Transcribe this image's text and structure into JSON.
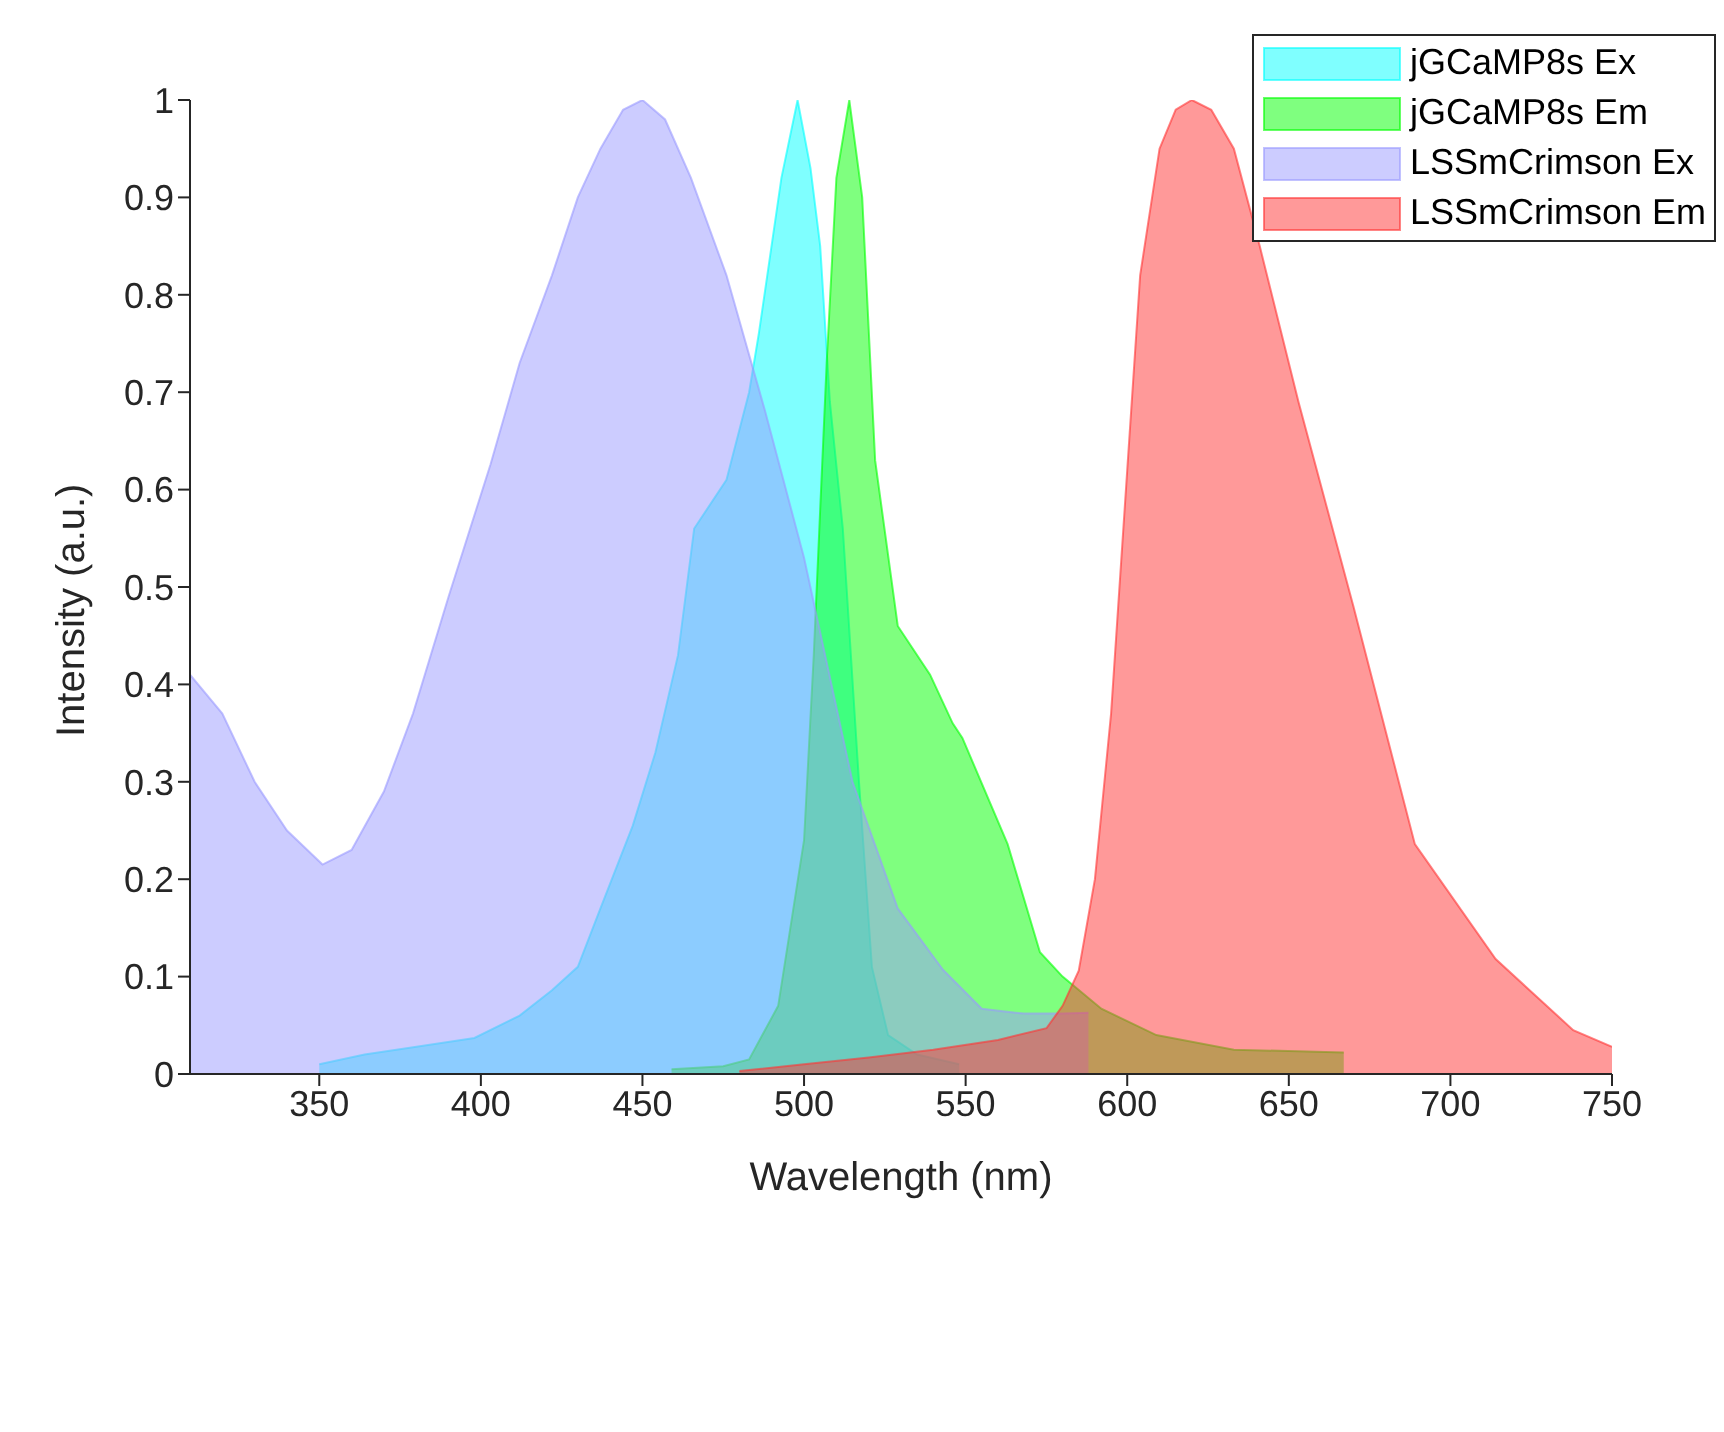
{
  "chart_data": {
    "type": "area",
    "xlabel": "Wavelength (nm)",
    "ylabel": "Intensity (a.u.)",
    "xlim": [
      310,
      750
    ],
    "xticks": [
      350,
      400,
      450,
      500,
      550,
      600,
      650,
      700,
      750
    ],
    "ylim": [
      0,
      1
    ],
    "yticks": [
      0,
      0.1,
      0.2,
      0.3,
      0.4,
      0.5,
      0.6,
      0.7,
      0.8,
      0.9,
      1
    ],
    "grid": false,
    "legend": "top right",
    "series": [
      {
        "name": "jGCaMP8s Ex",
        "color": "#00ffff",
        "x": [
          350,
          364,
          378,
          398,
          412,
          422,
          430,
          437,
          447,
          454,
          461,
          466,
          476,
          483,
          486,
          493,
          498,
          502,
          505,
          508,
          512,
          517,
          521,
          526,
          535,
          548
        ],
        "values": [
          0.01,
          0.02,
          0.027,
          0.037,
          0.06,
          0.086,
          0.11,
          0.17,
          0.255,
          0.33,
          0.43,
          0.56,
          0.61,
          0.7,
          0.76,
          0.92,
          1,
          0.93,
          0.85,
          0.69,
          0.56,
          0.3,
          0.11,
          0.04,
          0.02,
          0.01
        ]
      },
      {
        "name": "jGCaMP8s Em",
        "color": "#00ff00",
        "x": [
          459,
          475,
          483,
          492,
          500,
          503,
          507,
          510,
          514,
          518,
          522,
          529,
          539,
          546,
          549,
          563,
          573,
          580,
          592,
          609,
          633,
          667
        ],
        "values": [
          0.005,
          0.008,
          0.015,
          0.07,
          0.24,
          0.43,
          0.73,
          0.92,
          1,
          0.9,
          0.63,
          0.46,
          0.41,
          0.36,
          0.345,
          0.236,
          0.125,
          0.1,
          0.067,
          0.04,
          0.025,
          0.022
        ]
      },
      {
        "name": "LSSmCrimson Ex",
        "color": "#9999ff",
        "x": [
          310,
          320,
          330,
          340,
          351,
          360,
          370,
          379,
          390,
          403,
          412,
          422,
          430,
          437,
          444,
          450,
          457,
          465,
          476,
          488,
          500,
          515,
          529,
          543,
          555,
          568,
          580,
          588
        ],
        "values": [
          0.41,
          0.37,
          0.3,
          0.25,
          0.215,
          0.23,
          0.29,
          0.37,
          0.49,
          0.626,
          0.73,
          0.82,
          0.9,
          0.95,
          0.99,
          1,
          0.98,
          0.92,
          0.82,
          0.68,
          0.53,
          0.3,
          0.17,
          0.107,
          0.067,
          0.062,
          0.062,
          0.063
        ]
      },
      {
        "name": "LSSmCrimson Em",
        "color": "#ff3333",
        "x": [
          480,
          500,
          520,
          540,
          560,
          575,
          580,
          585,
          590,
          595,
          600,
          604,
          610,
          615,
          620,
          626,
          633,
          641,
          653,
          670,
          689,
          714,
          738,
          750
        ],
        "values": [
          0.003,
          0.01,
          0.017,
          0.025,
          0.035,
          0.047,
          0.07,
          0.106,
          0.2,
          0.37,
          0.62,
          0.82,
          0.95,
          0.99,
          1,
          0.99,
          0.95,
          0.85,
          0.69,
          0.48,
          0.236,
          0.118,
          0.045,
          0.028
        ]
      }
    ]
  }
}
